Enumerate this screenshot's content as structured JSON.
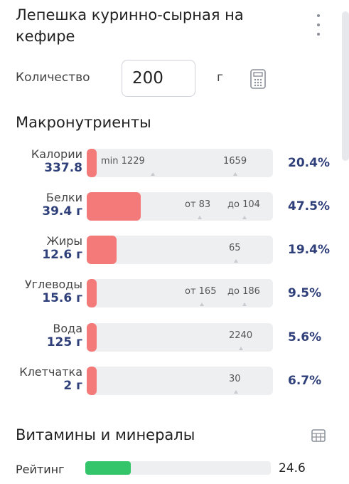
{
  "header": {
    "title": "Лепешка куринно-сырная на кефире",
    "menu_icon": "more-vertical-icon"
  },
  "quantity": {
    "label": "Количество",
    "value": "200",
    "unit": "г",
    "calc_icon": "calculator-icon"
  },
  "macros": {
    "heading": "Макронутриенты",
    "fill_color": "#f47a7a",
    "rows": [
      {
        "label": "Калории",
        "value": "337.8",
        "fill_fraction": 0.02,
        "pct": "20.4%",
        "marks": [
          "min 1229",
          "1659"
        ]
      },
      {
        "label": "Белки",
        "value": "39.4 г",
        "fill_fraction": 0.29,
        "pct": "47.5%",
        "marks": [
          "от 83",
          "до 104"
        ]
      },
      {
        "label": "Жиры",
        "value": "12.6 г",
        "fill_fraction": 0.16,
        "pct": "19.4%",
        "marks": [
          "65"
        ]
      },
      {
        "label": "Углеводы",
        "value": "15.6 г",
        "fill_fraction": 0.05,
        "pct": "9.5%",
        "marks": [
          "от 165",
          "до 186"
        ]
      },
      {
        "label": "Вода",
        "value": "125 г",
        "fill_fraction": 0.05,
        "pct": "5.6%",
        "marks": [
          "2240"
        ]
      },
      {
        "label": "Клетчатка",
        "value": "2 г",
        "fill_fraction": 0.05,
        "pct": "6.7%",
        "marks": [
          "30"
        ]
      }
    ]
  },
  "vitamins": {
    "heading": "Витамины и минералы",
    "table_icon": "table-icon",
    "rating_label": "Рейтинг",
    "rating_value": "24.6",
    "rating_fraction": 0.246,
    "rating_color": "#34c46a"
  }
}
